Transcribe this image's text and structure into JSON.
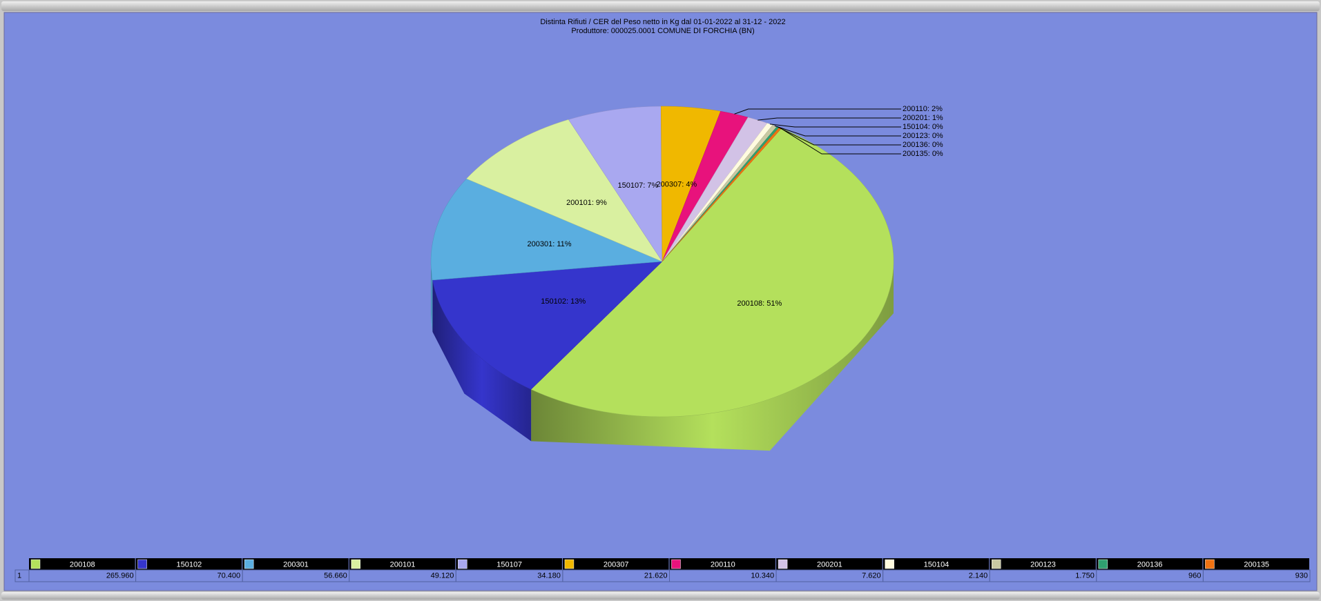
{
  "chart_data": {
    "type": "pie3d",
    "title": "Distinta Rifiuti / CER  del Peso netto in Kg dal 01-01-2022 al 31-12 - 2022",
    "subtitle": "Produttore: 000025.0001 COMUNE DI FORCHIA (BN)",
    "categories": [
      "200108",
      "150102",
      "200301",
      "200101",
      "150107",
      "200307",
      "200110",
      "200201",
      "150104",
      "200123",
      "200136",
      "200135"
    ],
    "values": [
      265960,
      70400,
      56660,
      49120,
      34180,
      21620,
      10340,
      7620,
      2140,
      1750,
      960,
      930
    ],
    "value_labels": [
      "265.960",
      "70.400",
      "56.660",
      "49.120",
      "34.180",
      "21.620",
      "10.340",
      "7.620",
      "2.140",
      "1.750",
      "960",
      "930"
    ],
    "slice_labels": [
      "200108: 51%",
      "150102: 13%",
      "200301: 11%",
      "200101: 9%",
      "150107: 7%",
      "200307: 4%",
      "200110: 2%",
      "200201: 1%",
      "150104: 0%",
      "200123: 0%",
      "200136: 0%",
      "200135: 0%"
    ],
    "colors": [
      "#b4e05c",
      "#3535cc",
      "#5aaee0",
      "#d9f0a0",
      "#a9a8f0",
      "#f0b800",
      "#e8127c",
      "#d2c2e6",
      "#fffbe0",
      "#c9c9a2",
      "#2fa070",
      "#f07212"
    ],
    "row_label": "1",
    "legend": "bottom"
  }
}
